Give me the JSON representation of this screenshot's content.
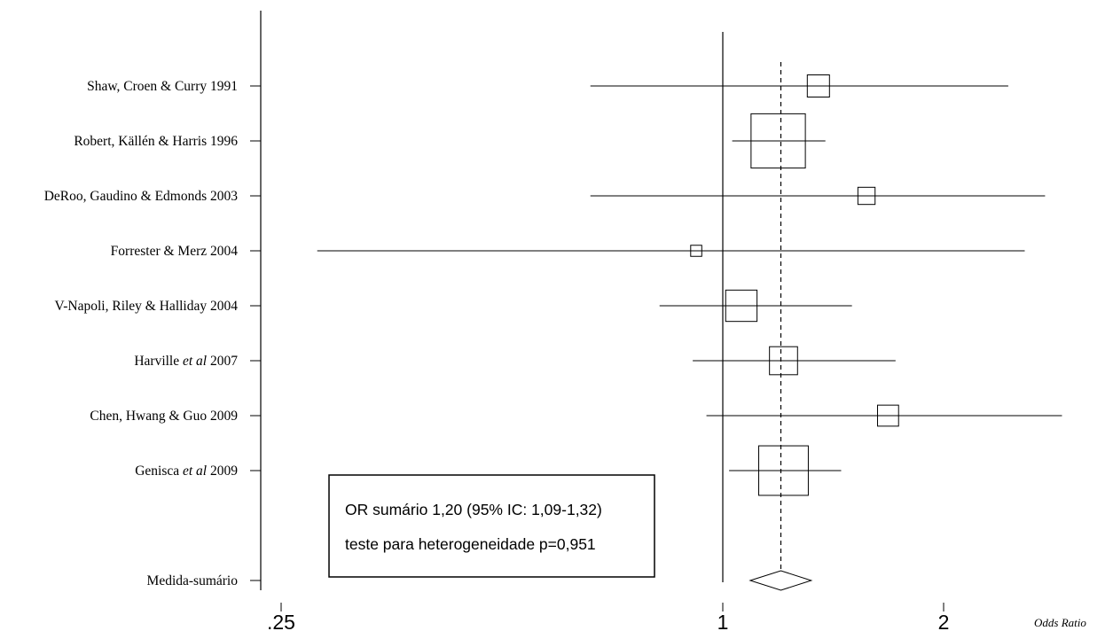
{
  "chart_data": {
    "type": "forest",
    "xlabel": "Odds Ratio",
    "x_scale": "log",
    "xlim": [
      0.25,
      2.8
    ],
    "x_ticks": [
      ".25",
      "1",
      "2"
    ],
    "x_tick_values": [
      0.25,
      1,
      2
    ],
    "null_line": 1,
    "summary_line": 1.2,
    "studies": [
      {
        "label_parts": [
          "Shaw, Croen & Curry 1991"
        ],
        "or": 1.35,
        "lo": 0.66,
        "hi": 2.45,
        "weight": 1
      },
      {
        "label_parts": [
          "Robert, Källén & Harris 1996"
        ],
        "or": 1.19,
        "lo": 1.03,
        "hi": 1.38,
        "weight": 6
      },
      {
        "label_parts": [
          "DeRoo, Gaudino & Edmonds 2003"
        ],
        "or": 1.57,
        "lo": 0.66,
        "hi": 2.75,
        "weight": 0.6
      },
      {
        "label_parts": [
          "Forrester & Merz 2004"
        ],
        "or": 0.92,
        "lo": 0.28,
        "hi": 2.58,
        "weight": 0.25
      },
      {
        "label_parts": [
          "V-Napoli, Riley & Halliday 2004"
        ],
        "or": 1.06,
        "lo": 0.82,
        "hi": 1.5,
        "weight": 2
      },
      {
        "label_parts": [
          "Harville ",
          "et al",
          " 2007"
        ],
        "or": 1.21,
        "lo": 0.91,
        "hi": 1.72,
        "weight": 1.6
      },
      {
        "label_parts": [
          "Chen, Hwang & Guo 2009"
        ],
        "or": 1.68,
        "lo": 0.95,
        "hi": 2.9,
        "weight": 0.9
      },
      {
        "label_parts": [
          "Genisca ",
          "et al",
          " 2009"
        ],
        "or": 1.21,
        "lo": 1.02,
        "hi": 1.45,
        "weight": 5
      }
    ],
    "summary": {
      "label": "Medida-sumário",
      "or": 1.2,
      "lo": 1.09,
      "hi": 1.32
    },
    "annotation": [
      "OR sumário 1,20 (95% IC: 1,09-1,32)",
      "teste para heterogeneidade p=0,951"
    ]
  }
}
